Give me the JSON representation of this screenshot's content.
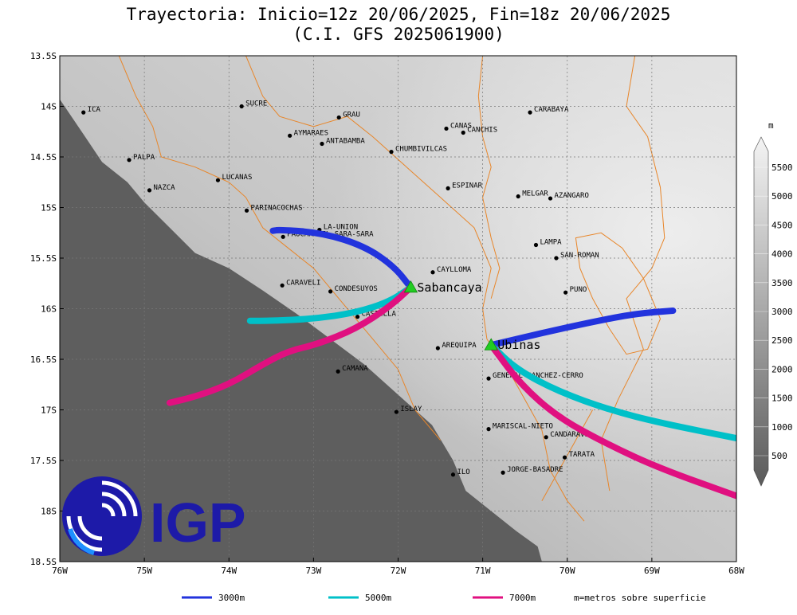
{
  "title": {
    "line1": "Trayectoria: Inicio=12z 20/06/2025, Fin=18z 20/06/2025",
    "line2": "(C.I. GFS 2025061900)"
  },
  "map": {
    "lon_range": [
      -76,
      -68
    ],
    "lat_range": [
      -18.5,
      -13.5
    ],
    "x_ticks": [
      {
        "value": -76,
        "label": "76W"
      },
      {
        "value": -75,
        "label": "75W"
      },
      {
        "value": -74,
        "label": "74W"
      },
      {
        "value": -73,
        "label": "73W"
      },
      {
        "value": -72,
        "label": "72W"
      },
      {
        "value": -71,
        "label": "71W"
      },
      {
        "value": -70,
        "label": "70W"
      },
      {
        "value": -69,
        "label": "69W"
      },
      {
        "value": -68,
        "label": "68W"
      }
    ],
    "y_ticks": [
      {
        "value": -13.5,
        "label": "13.5S"
      },
      {
        "value": -14,
        "label": "14S"
      },
      {
        "value": -14.5,
        "label": "14.5S"
      },
      {
        "value": -15,
        "label": "15S"
      },
      {
        "value": -15.5,
        "label": "15.5S"
      },
      {
        "value": -16,
        "label": "16S"
      },
      {
        "value": -16.5,
        "label": "16.5S"
      },
      {
        "value": -17,
        "label": "17S"
      },
      {
        "value": -17.5,
        "label": "17.5S"
      },
      {
        "value": -18,
        "label": "18S"
      },
      {
        "value": -18.5,
        "label": "18.5S"
      }
    ],
    "grid": true,
    "colors": {
      "ocean": "#5e5e5e",
      "boundary": "#e8862a"
    }
  },
  "colorbar": {
    "unit": "m",
    "levels": [
      500,
      1000,
      1500,
      2000,
      2500,
      3000,
      3500,
      4000,
      4500,
      5000,
      5500
    ],
    "labels": [
      "500",
      "1000",
      "1500",
      "2000",
      "2500",
      "3000",
      "3500",
      "4000",
      "4500",
      "5000",
      "5500"
    ]
  },
  "places": [
    {
      "name": "ICA",
      "lon": -75.72,
      "lat": -14.06
    },
    {
      "name": "SUCRE",
      "lon": -73.85,
      "lat": -14.0
    },
    {
      "name": "GRAU",
      "lon": -72.7,
      "lat": -14.11
    },
    {
      "name": "CARABAYA",
      "lon": -70.44,
      "lat": -14.06
    },
    {
      "name": "AYMARAES",
      "lon": -73.28,
      "lat": -14.29
    },
    {
      "name": "CANAS",
      "lon": -71.43,
      "lat": -14.22
    },
    {
      "name": "CANCHIS",
      "lon": -71.23,
      "lat": -14.26
    },
    {
      "name": "ANTABAMBA",
      "lon": -72.9,
      "lat": -14.37
    },
    {
      "name": "CHUMBIVILCAS",
      "lon": -72.08,
      "lat": -14.45
    },
    {
      "name": "PALPA",
      "lon": -75.18,
      "lat": -14.53
    },
    {
      "name": "LUCANAS",
      "lon": -74.13,
      "lat": -14.73
    },
    {
      "name": "ESPINAR",
      "lon": -71.41,
      "lat": -14.81
    },
    {
      "name": "NAZCA",
      "lon": -74.94,
      "lat": -14.83
    },
    {
      "name": "MELGAR",
      "lon": -70.58,
      "lat": -14.89
    },
    {
      "name": "AZANGARO",
      "lon": -70.2,
      "lat": -14.91
    },
    {
      "name": "PARINACOCHAS",
      "lon": -73.79,
      "lat": -15.03
    },
    {
      "name": "LA-UNION",
      "lon": -72.93,
      "lat": -15.22
    },
    {
      "name": "PAUCAR-DEL-SARA-SARA",
      "lon": -73.36,
      "lat": -15.29
    },
    {
      "name": "LAMPA",
      "lon": -70.37,
      "lat": -15.37
    },
    {
      "name": "CAYLLOMA",
      "lon": -71.59,
      "lat": -15.64
    },
    {
      "name": "SAN-ROMAN",
      "lon": -70.13,
      "lat": -15.5
    },
    {
      "name": "CARAVELI",
      "lon": -73.37,
      "lat": -15.77
    },
    {
      "name": "CONDESUYOS",
      "lon": -72.8,
      "lat": -15.83
    },
    {
      "name": "PUNO",
      "lon": -70.02,
      "lat": -15.84
    },
    {
      "name": "CASTILLA",
      "lon": -72.48,
      "lat": -16.08
    },
    {
      "name": "AREQUIPA",
      "lon": -71.53,
      "lat": -16.39
    },
    {
      "name": "CAMANA",
      "lon": -72.71,
      "lat": -16.62
    },
    {
      "name": "GENERAL-SANCHEZ-CERRO",
      "lon": -70.93,
      "lat": -16.69
    },
    {
      "name": "ISLAY",
      "lon": -72.02,
      "lat": -17.02
    },
    {
      "name": "MARISCAL-NIETO",
      "lon": -70.93,
      "lat": -17.19
    },
    {
      "name": "CANDARAVE",
      "lon": -70.25,
      "lat": -17.27
    },
    {
      "name": "TARATA",
      "lon": -70.03,
      "lat": -17.47
    },
    {
      "name": "ILO",
      "lon": -71.35,
      "lat": -17.64
    },
    {
      "name": "JORGE-BASADRE",
      "lon": -70.76,
      "lat": -17.62
    }
  ],
  "volcanoes": [
    {
      "name": "Sabancaya",
      "lon": -71.85,
      "lat": -15.79
    },
    {
      "name": "Ubinas",
      "lon": -70.9,
      "lat": -16.36
    }
  ],
  "trajectories": [
    {
      "volcano": "Sabancaya",
      "level": "3000m",
      "color": "#2233dd",
      "points": [
        [
          -71.85,
          -15.79
        ],
        [
          -72.05,
          -15.58
        ],
        [
          -72.4,
          -15.38
        ],
        [
          -72.9,
          -15.25
        ],
        [
          -73.4,
          -15.22
        ],
        [
          -73.48,
          -15.23
        ]
      ]
    },
    {
      "volcano": "Sabancaya",
      "level": "5000m",
      "color": "#00c0c8",
      "points": [
        [
          -71.85,
          -15.79
        ],
        [
          -72.1,
          -15.93
        ],
        [
          -72.5,
          -16.04
        ],
        [
          -73.0,
          -16.1
        ],
        [
          -73.5,
          -16.12
        ],
        [
          -73.75,
          -16.12
        ]
      ]
    },
    {
      "volcano": "Sabancaya",
      "level": "7000m",
      "color": "#e01080",
      "points": [
        [
          -71.85,
          -15.79
        ],
        [
          -72.1,
          -15.98
        ],
        [
          -72.5,
          -16.2
        ],
        [
          -72.95,
          -16.35
        ],
        [
          -73.3,
          -16.42
        ],
        [
          -73.6,
          -16.55
        ],
        [
          -74.0,
          -16.75
        ],
        [
          -74.4,
          -16.87
        ],
        [
          -74.7,
          -16.93
        ]
      ]
    },
    {
      "volcano": "Ubinas",
      "level": "3000m",
      "color": "#2233dd",
      "points": [
        [
          -70.9,
          -16.36
        ],
        [
          -70.3,
          -16.24
        ],
        [
          -69.7,
          -16.13
        ],
        [
          -69.2,
          -16.05
        ],
        [
          -68.75,
          -16.02
        ]
      ]
    },
    {
      "volcano": "Ubinas",
      "level": "5000m",
      "color": "#00c0c8",
      "points": [
        [
          -70.9,
          -16.36
        ],
        [
          -70.6,
          -16.6
        ],
        [
          -70.1,
          -16.82
        ],
        [
          -69.5,
          -17.0
        ],
        [
          -68.9,
          -17.13
        ],
        [
          -68.0,
          -17.28
        ]
      ]
    },
    {
      "volcano": "Ubinas",
      "level": "7000m",
      "color": "#e01080",
      "points": [
        [
          -70.9,
          -16.36
        ],
        [
          -70.55,
          -16.75
        ],
        [
          -70.1,
          -17.08
        ],
        [
          -69.5,
          -17.35
        ],
        [
          -68.9,
          -17.58
        ],
        [
          -68.0,
          -17.85
        ]
      ]
    }
  ],
  "legend": {
    "items": [
      {
        "label": "3000m",
        "color": "#2233dd"
      },
      {
        "label": "5000m",
        "color": "#00c0c8"
      },
      {
        "label": "7000m",
        "color": "#e01080"
      }
    ],
    "note": "m=metros sobre superficie"
  },
  "logo": {
    "text": "IGP",
    "color": "#1d1aa8",
    "accent": "#1e90ff"
  }
}
